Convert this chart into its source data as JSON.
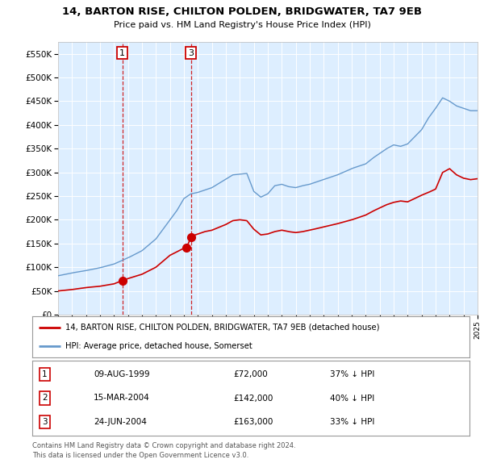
{
  "title": "14, BARTON RISE, CHILTON POLDEN, BRIDGWATER, TA7 9EB",
  "subtitle": "Price paid vs. HM Land Registry's House Price Index (HPI)",
  "legend_line1": "14, BARTON RISE, CHILTON POLDEN, BRIDGWATER, TA7 9EB (detached house)",
  "legend_line2": "HPI: Average price, detached house, Somerset",
  "transactions": [
    {
      "num": 1,
      "date": "09-AUG-1999",
      "year": 1999.6,
      "price": 72000,
      "hpi_pct": "37% ↓ HPI"
    },
    {
      "num": 2,
      "date": "15-MAR-2004",
      "year": 2004.2,
      "price": 142000,
      "hpi_pct": "40% ↓ HPI"
    },
    {
      "num": 3,
      "date": "24-JUN-2004",
      "year": 2004.5,
      "price": 163000,
      "hpi_pct": "33% ↓ HPI"
    }
  ],
  "footer_line1": "Contains HM Land Registry data © Crown copyright and database right 2024.",
  "footer_line2": "This data is licensed under the Open Government Licence v3.0.",
  "red_color": "#cc0000",
  "blue_color": "#6699cc",
  "plot_bg": "#ddeeff",
  "ylim": [
    0,
    575000
  ],
  "xlim_start": 1995,
  "xlim_end": 2025,
  "hpi_anchors": [
    [
      1995.0,
      82000
    ],
    [
      1996.0,
      88000
    ],
    [
      1997.0,
      93000
    ],
    [
      1998.0,
      99000
    ],
    [
      1999.0,
      107000
    ],
    [
      2000.0,
      120000
    ],
    [
      2001.0,
      135000
    ],
    [
      2002.0,
      160000
    ],
    [
      2003.5,
      220000
    ],
    [
      2004.0,
      245000
    ],
    [
      2004.5,
      255000
    ],
    [
      2005.0,
      258000
    ],
    [
      2006.0,
      268000
    ],
    [
      2007.5,
      295000
    ],
    [
      2008.5,
      298000
    ],
    [
      2009.0,
      260000
    ],
    [
      2009.5,
      248000
    ],
    [
      2010.0,
      255000
    ],
    [
      2010.5,
      272000
    ],
    [
      2011.0,
      275000
    ],
    [
      2011.5,
      270000
    ],
    [
      2012.0,
      268000
    ],
    [
      2012.5,
      272000
    ],
    [
      2013.0,
      275000
    ],
    [
      2014.0,
      285000
    ],
    [
      2015.0,
      295000
    ],
    [
      2016.0,
      308000
    ],
    [
      2017.0,
      318000
    ],
    [
      2017.5,
      330000
    ],
    [
      2018.0,
      340000
    ],
    [
      2018.5,
      350000
    ],
    [
      2019.0,
      358000
    ],
    [
      2019.5,
      355000
    ],
    [
      2020.0,
      360000
    ],
    [
      2020.5,
      375000
    ],
    [
      2021.0,
      390000
    ],
    [
      2021.5,
      415000
    ],
    [
      2022.0,
      435000
    ],
    [
      2022.5,
      457000
    ],
    [
      2023.0,
      450000
    ],
    [
      2023.5,
      440000
    ],
    [
      2024.0,
      435000
    ],
    [
      2024.5,
      430000
    ],
    [
      2025.0,
      430000
    ]
  ],
  "red_anchors": [
    [
      1995.0,
      50000
    ],
    [
      1996.0,
      53000
    ],
    [
      1997.0,
      57000
    ],
    [
      1998.0,
      60000
    ],
    [
      1999.0,
      65000
    ],
    [
      1999.6,
      72000
    ],
    [
      2000.0,
      76000
    ],
    [
      2001.0,
      85000
    ],
    [
      2002.0,
      100000
    ],
    [
      2003.0,
      125000
    ],
    [
      2004.0,
      140000
    ],
    [
      2004.2,
      142000
    ],
    [
      2004.5,
      163000
    ],
    [
      2004.8,
      168000
    ],
    [
      2005.5,
      175000
    ],
    [
      2006.0,
      178000
    ],
    [
      2007.0,
      190000
    ],
    [
      2007.5,
      198000
    ],
    [
      2008.0,
      200000
    ],
    [
      2008.5,
      198000
    ],
    [
      2009.0,
      180000
    ],
    [
      2009.5,
      168000
    ],
    [
      2010.0,
      170000
    ],
    [
      2010.5,
      175000
    ],
    [
      2011.0,
      178000
    ],
    [
      2011.5,
      175000
    ],
    [
      2012.0,
      173000
    ],
    [
      2012.5,
      175000
    ],
    [
      2013.0,
      178000
    ],
    [
      2014.0,
      185000
    ],
    [
      2015.0,
      192000
    ],
    [
      2016.0,
      200000
    ],
    [
      2017.0,
      210000
    ],
    [
      2017.5,
      218000
    ],
    [
      2018.0,
      225000
    ],
    [
      2018.5,
      232000
    ],
    [
      2019.0,
      237000
    ],
    [
      2019.5,
      240000
    ],
    [
      2020.0,
      238000
    ],
    [
      2020.5,
      245000
    ],
    [
      2021.0,
      252000
    ],
    [
      2021.5,
      258000
    ],
    [
      2022.0,
      265000
    ],
    [
      2022.5,
      300000
    ],
    [
      2023.0,
      308000
    ],
    [
      2023.5,
      295000
    ],
    [
      2024.0,
      288000
    ],
    [
      2024.5,
      285000
    ],
    [
      2025.0,
      287000
    ]
  ],
  "row_data": [
    [
      "1",
      "09-AUG-1999",
      "£72,000",
      "37% ↓ HPI"
    ],
    [
      "2",
      "15-MAR-2004",
      "£142,000",
      "40% ↓ HPI"
    ],
    [
      "3",
      "24-JUN-2004",
      "£163,000",
      "33% ↓ HPI"
    ]
  ]
}
